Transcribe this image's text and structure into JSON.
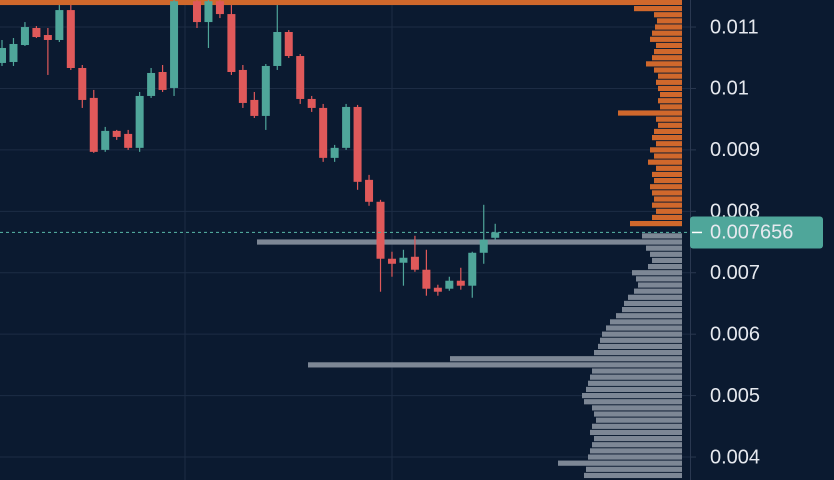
{
  "chart_data": {
    "type": "candlestick",
    "ylim": [
      0.003626,
      0.01144
    ],
    "yticks": [
      0.011,
      0.01,
      0.009,
      0.008,
      0.007,
      0.006,
      0.005,
      0.004
    ],
    "grid": true,
    "up_color": "#4fa69a",
    "down_color": "#e0595a",
    "last_price": 0.007656,
    "last_price_color": "#4fa69a",
    "open": [
      0.010415,
      0.010431,
      0.010707,
      0.010984,
      0.01087,
      0.010789,
      0.011276,
      0.010333,
      0.009846,
      0.009,
      0.009309,
      0.00926,
      0.009033,
      0.009878,
      0.010268,
      0.010008,
      null,
      0.01142,
      0.011081,
      0.01142,
      0.011211,
      0.010301,
      0.009813,
      0.009553,
      0.010366,
      0.010919,
      0.010528,
      0.009829,
      0.009683,
      0.00887,
      0.009033,
      0.009699,
      0.008512,
      0.008155,
      0.007228,
      0.007163,
      0.00726,
      0.007049,
      0.006756,
      0.00674,
      0.00687,
      0.006789,
      0.007325,
      0.007569
    ],
    "high": [
      0.010789,
      0.010821,
      0.011081,
      0.011016,
      0.010984,
      0.011358,
      0.011358,
      0.010382,
      0.009976,
      0.009374,
      0.009325,
      0.009325,
      0.009943,
      0.010333,
      0.010382,
      0.01144,
      null,
      0.01144,
      0.01144,
      0.01144,
      0.011358,
      0.010382,
      0.009943,
      0.010398,
      0.011358,
      0.010951,
      0.010561,
      0.009878,
      0.009748,
      0.009081,
      0.009748,
      0.009732,
      0.008593,
      0.008187,
      0.007342,
      0.007374,
      0.007602,
      0.007374,
      0.006805,
      0.006935,
      0.007081,
      0.007342,
      0.008106,
      0.007797
    ],
    "low": [
      0.010366,
      0.010366,
      0.010691,
      0.010821,
      0.01022,
      0.010756,
      0.010301,
      0.009683,
      0.008951,
      0.008968,
      0.009163,
      0.009,
      0.008968,
      0.009846,
      0.009943,
      0.009878,
      null,
      0.010984,
      0.010659,
      0.011146,
      0.01022,
      0.009683,
      0.00952,
      0.009325,
      0.010301,
      0.010496,
      0.009748,
      0.009618,
      0.008805,
      0.008805,
      0.009,
      0.00835,
      0.00809,
      0.006691,
      0.006935,
      0.006789,
      0.007016,
      0.006626,
      0.006626,
      0.006707,
      0.006724,
      0.006593,
      0.007146,
      0.007537
    ],
    "close": [
      0.010659,
      0.010724,
      0.011,
      0.010837,
      0.010789,
      0.011276,
      0.010333,
      0.009813,
      0.008968,
      0.009309,
      0.009211,
      0.009033,
      0.009878,
      0.010252,
      0.009976,
      0.01142,
      null,
      0.011081,
      0.01142,
      0.011211,
      0.010268,
      0.009764,
      0.009553,
      0.010366,
      0.010919,
      0.010528,
      0.009829,
      0.009683,
      0.00887,
      0.009033,
      0.009699,
      0.00848,
      0.008155,
      0.007228,
      0.007146,
      0.007244,
      0.007049,
      0.00674,
      0.006691,
      0.00687,
      0.006789,
      0.007325,
      0.007537,
      0.007656
    ],
    "asks": {
      "color": "#d0682c",
      "prices": [
        0.0114,
        0.0113,
        0.0112,
        0.0111,
        0.011,
        0.0109,
        0.0108,
        0.0107,
        0.0106,
        0.0105,
        0.0104,
        0.0103,
        0.0102,
        0.0101,
        0.01,
        0.0099,
        0.0098,
        0.0097,
        0.0096,
        0.0095,
        0.0094,
        0.0093,
        0.0092,
        0.0091,
        0.009,
        0.0089,
        0.0088,
        0.0087,
        0.0086,
        0.0085,
        0.0084,
        0.0083,
        0.0082,
        0.0081,
        0.008,
        0.0079,
        0.0078
      ],
      "sizes": [
        682,
        48,
        28,
        25,
        27,
        30,
        32,
        26,
        28,
        30,
        36,
        28,
        24,
        26,
        24,
        22,
        24,
        22,
        64,
        26,
        24,
        28,
        30,
        26,
        32,
        28,
        34,
        26,
        30,
        28,
        32,
        30,
        28,
        30,
        26,
        30,
        52
      ]
    },
    "bids": {
      "color": "#7d8795",
      "prices": [
        0.0076,
        0.0075,
        0.0074,
        0.0073,
        0.0072,
        0.0071,
        0.007,
        0.0069,
        0.0068,
        0.0067,
        0.0066,
        0.0065,
        0.0064,
        0.0063,
        0.0062,
        0.0061,
        0.006,
        0.0059,
        0.0058,
        0.0057,
        0.0056,
        0.0055,
        0.0054,
        0.0053,
        0.0052,
        0.0051,
        0.005,
        0.0049,
        0.0048,
        0.0047,
        0.0046,
        0.0045,
        0.0044,
        0.0043,
        0.0042,
        0.0041,
        0.004,
        0.0039,
        0.0038,
        0.0037
      ],
      "sizes": [
        40,
        425,
        36,
        32,
        30,
        34,
        50,
        46,
        44,
        48,
        54,
        58,
        60,
        66,
        72,
        76,
        80,
        82,
        84,
        88,
        232,
        374,
        90,
        92,
        94,
        96,
        100,
        98,
        90,
        88,
        86,
        90,
        92,
        88,
        90,
        92,
        94,
        124,
        96,
        98
      ]
    }
  }
}
